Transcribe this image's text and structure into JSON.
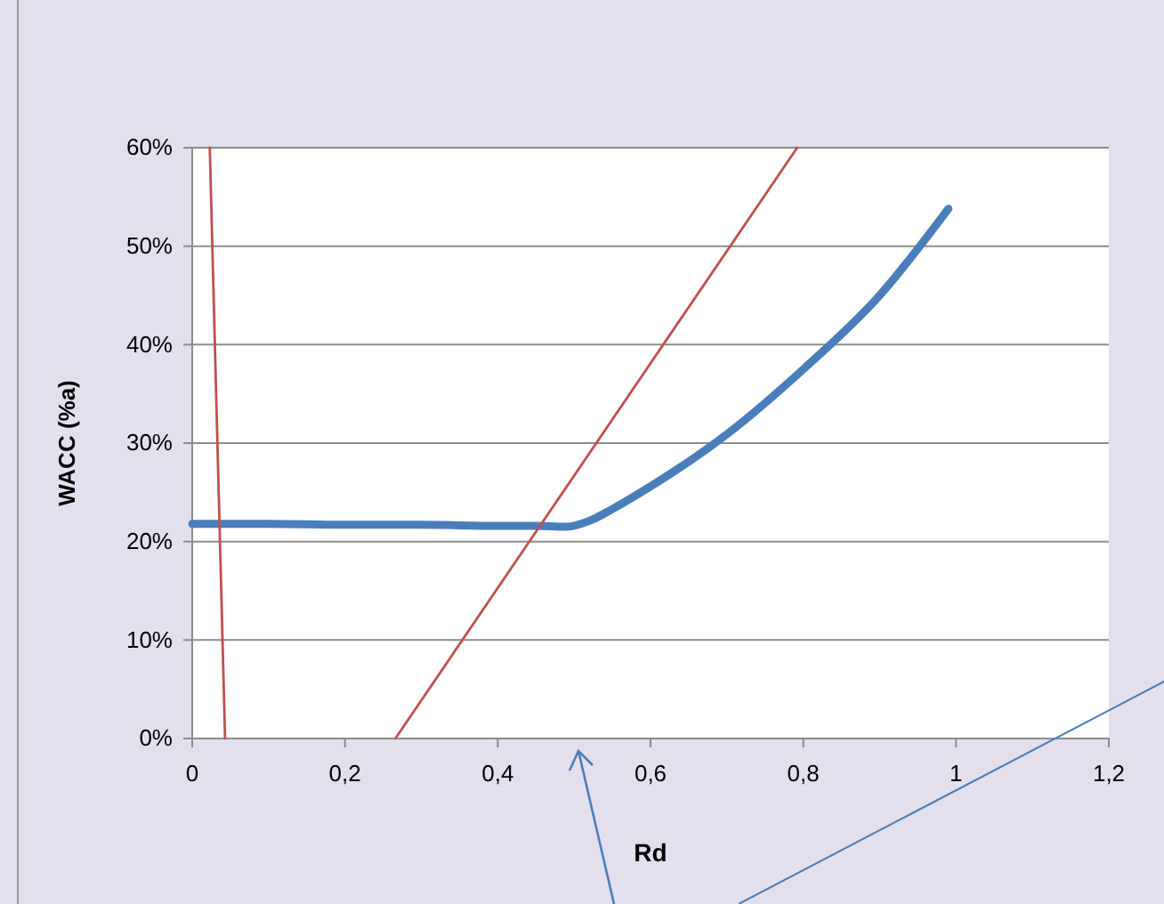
{
  "chart_data": {
    "type": "line",
    "xlabel": "Rd",
    "ylabel": "WACC (%a)",
    "xlim": [
      0,
      1.2
    ],
    "ylim": [
      0,
      60
    ],
    "xticks": [
      0,
      {
        "value": 0.2,
        "label": "0,2"
      },
      {
        "value": 0.4,
        "label": "0,4"
      },
      {
        "value": 0.6,
        "label": "0,6"
      },
      {
        "value": 0.8,
        "label": "0,8"
      },
      1,
      {
        "value": 1.2,
        "label": "1,2"
      }
    ],
    "yticks": [
      {
        "value": 0,
        "label": "0%"
      },
      {
        "value": 10,
        "label": "10%"
      },
      {
        "value": 20,
        "label": "20%"
      },
      {
        "value": 30,
        "label": "30%"
      },
      {
        "value": 40,
        "label": "40%"
      },
      {
        "value": 50,
        "label": "50%"
      },
      {
        "value": 60,
        "label": "60%"
      }
    ],
    "grid": "y",
    "marker": "none",
    "line_style": "solid",
    "series": [
      {
        "color": "#4a7ebb",
        "x": [
          0,
          0.1,
          0.2,
          0.3,
          0.4,
          0.45,
          0.49,
          0.52,
          0.55,
          0.6,
          0.7,
          0.8,
          0.9,
          0.99
        ],
        "values": [
          21.8,
          21.8,
          21.7,
          21.7,
          21.6,
          21.6,
          21.5,
          22.1,
          23.3,
          25.6,
          30.9,
          37.5,
          45.0,
          53.8
        ]
      },
      {
        "color": "#c0504d",
        "x": [
          0.023,
          0.043
        ],
        "values": [
          60,
          0
        ]
      },
      {
        "color": "#c0504d",
        "x": [
          0.266,
          0.792
        ],
        "values": [
          0,
          60
        ]
      }
    ]
  }
}
